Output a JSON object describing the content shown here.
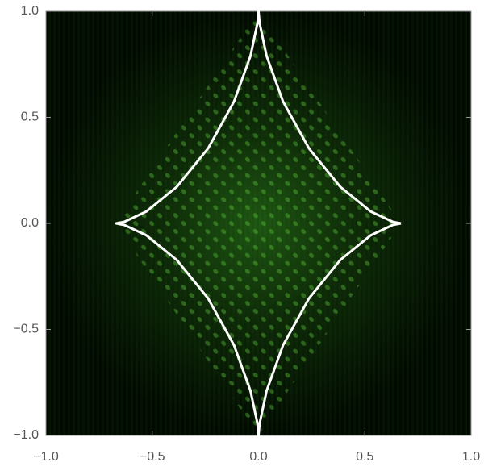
{
  "chart_data": {
    "type": "line",
    "xlim": [
      -1,
      1
    ],
    "ylim": [
      -1,
      1
    ],
    "xticks": [
      {
        "value": -1,
        "label": "−1.0"
      },
      {
        "value": -0.5,
        "label": "−0.5"
      },
      {
        "value": 0,
        "label": "0.0"
      },
      {
        "value": 0.5,
        "label": "0.5"
      },
      {
        "value": 1,
        "label": "1.0"
      }
    ],
    "yticks": [
      {
        "value": -1,
        "label": "−1.0"
      },
      {
        "value": -0.5,
        "label": "−0.5"
      },
      {
        "value": 0,
        "label": "0.0"
      },
      {
        "value": 0.5,
        "label": "0.5"
      },
      {
        "value": 1,
        "label": "1.0"
      }
    ],
    "series": [
      {
        "color": "#ffffff",
        "x": [
          0.67,
          0.632,
          0.528,
          0.385,
          0.237,
          0.115,
          0.038,
          0.005,
          0,
          -0.005,
          -0.038,
          -0.115,
          -0.237,
          -0.385,
          -0.528,
          -0.632,
          -0.67,
          -0.632,
          -0.528,
          -0.385,
          -0.237,
          -0.115,
          -0.038,
          -0.005,
          0,
          0.005,
          0.038,
          0.115,
          0.237,
          0.385,
          0.528,
          0.632,
          0.67
        ],
        "values": [
          0,
          0.007,
          0.056,
          0.172,
          0.354,
          0.575,
          0.789,
          0.944,
          1,
          0.944,
          0.789,
          0.575,
          0.354,
          0.172,
          0.056,
          0.007,
          0,
          -0.007,
          -0.056,
          -0.172,
          -0.354,
          -0.575,
          -0.789,
          -0.944,
          -1,
          -0.944,
          -0.789,
          -0.575,
          -0.354,
          -0.172,
          -0.056,
          -0.007,
          0
        ]
      }
    ]
  }
}
